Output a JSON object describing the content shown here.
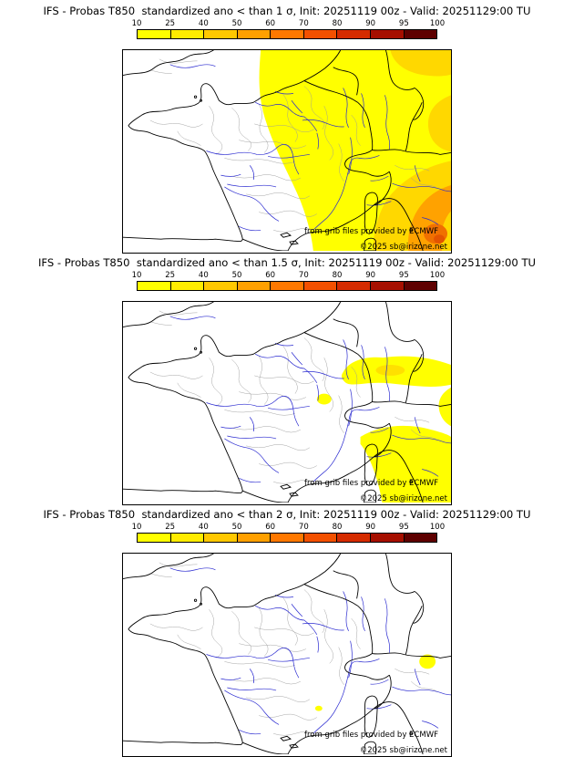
{
  "colorbar": {
    "ticks": [
      "10",
      "25",
      "40",
      "50",
      "60",
      "70",
      "80",
      "90",
      "95",
      "100"
    ],
    "segment_colors": [
      "#ffff00",
      "#ffec00",
      "#ffc800",
      "#ffa000",
      "#ff7800",
      "#f35000",
      "#d52b00",
      "#a60f00",
      "#5e0000"
    ]
  },
  "panels": [
    {
      "title": "IFS - Probas T850  standardized ano < than 1 σ, Init: 20251119 00z - Valid: 20251129:00 TU",
      "attribution": "from grib files provided by ECMWF",
      "copyright": "©2025 sb@irizone.net"
    },
    {
      "title": "IFS - Probas T850  standardized ano < than 1.5 σ, Init: 20251119 00z - Valid: 20251129:00 TU",
      "attribution": "from grib files provided by ECMWF",
      "copyright": "©2025 sb@irizone.net"
    },
    {
      "title": "IFS - Probas T850  standardized ano < than 2 σ, Init: 20251119 00z - Valid: 20251129:00 TU",
      "attribution": "from grib files provided by ECMWF",
      "copyright": "©2025 sb@irizone.net"
    }
  ],
  "map": {
    "river_color": "#2a2ad0",
    "boundary_color": "#000000",
    "department_color": "#9a9a9a",
    "background_color": "#ffffff",
    "shade_low_color": "#ffff00",
    "shade_mid_color": "#ffd800",
    "shade_high_color": "#f07000"
  }
}
